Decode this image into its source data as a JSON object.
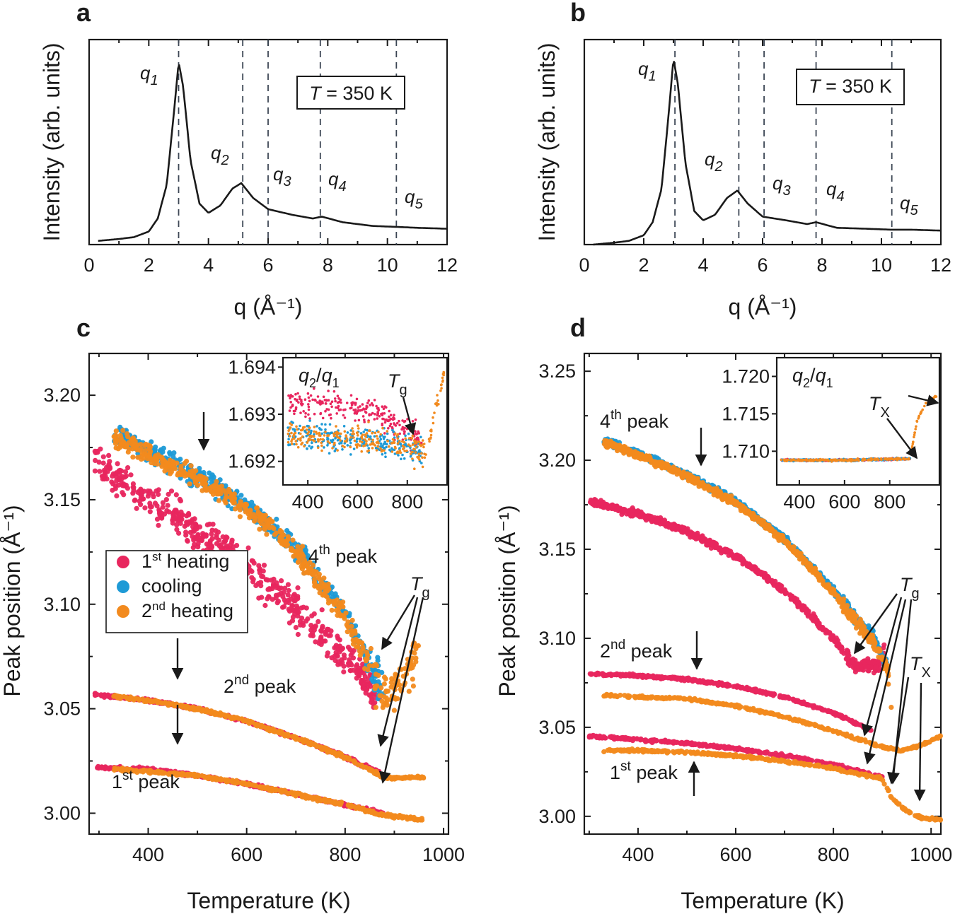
{
  "panels": {
    "a": {
      "letter": "a",
      "xlabel": "q (Å⁻¹)",
      "ylabel": "Intensity (arb. units)",
      "xlim": [
        0,
        12
      ],
      "xticks": [
        0,
        2,
        4,
        6,
        8,
        10,
        12
      ],
      "box_label": "T = 350 K",
      "peak_labels": [
        "q1",
        "q2",
        "q3",
        "q4",
        "q5"
      ]
    },
    "b": {
      "letter": "b",
      "xlabel": "q (Å⁻¹)",
      "ylabel": "Intensity (arb. units)",
      "xlim": [
        0,
        12
      ],
      "xticks": [
        0,
        2,
        4,
        6,
        8,
        10,
        12
      ],
      "box_label": "T = 350 K",
      "peak_labels": [
        "q1",
        "q2",
        "q3",
        "q4",
        "q5"
      ]
    },
    "c": {
      "letter": "c",
      "xlabel": "Temperature (K)",
      "ylabel": "Peak position (Å⁻¹)",
      "legend": [
        "1st heating",
        "cooling",
        "2nd heating"
      ],
      "peak_names": [
        "4th peak",
        "2nd peak",
        "1st peak"
      ],
      "tg_label": "Tg",
      "inset_label": "q2/q1"
    },
    "d": {
      "letter": "d",
      "xlabel": "Temperature (K)",
      "ylabel": "Peak position (Å⁻¹)",
      "peak_names": [
        "4th peak",
        "2nd peak",
        "1st peak"
      ],
      "tg_label": "Tg",
      "tx_label": "Tx",
      "inset_label": "q2/q1"
    }
  },
  "colors": {
    "first_heating": "#e8265e",
    "cooling": "#1e9ad6",
    "second_heating": "#f28a1e"
  },
  "chart_data": [
    {
      "type": "line",
      "panel": "a",
      "x": [
        0.3,
        1,
        1.5,
        2,
        2.3,
        2.6,
        2.85,
        3.0,
        3.15,
        3.4,
        3.7,
        4.0,
        4.4,
        4.8,
        5.1,
        5.5,
        6.0,
        6.8,
        7.5,
        7.8,
        8.5,
        9.5,
        10.3,
        11,
        12
      ],
      "values": [
        0.02,
        0.03,
        0.04,
        0.07,
        0.14,
        0.32,
        0.72,
        0.98,
        0.85,
        0.45,
        0.22,
        0.17,
        0.21,
        0.3,
        0.33,
        0.25,
        0.19,
        0.16,
        0.14,
        0.15,
        0.12,
        0.1,
        0.095,
        0.09,
        0.085
      ],
      "ylim": [
        0,
        1.1
      ],
      "dashed_lines_x": [
        3.0,
        5.15,
        6.0,
        7.75,
        10.3
      ],
      "xlabel": "q (Å⁻¹)",
      "ylabel": "Intensity (arb. units)",
      "annotations": [
        "q1",
        "q2",
        "q3",
        "q4",
        "q5",
        "T = 350 K"
      ]
    },
    {
      "type": "line",
      "panel": "b",
      "x": [
        0.3,
        1,
        1.5,
        2,
        2.3,
        2.6,
        2.85,
        3.0,
        3.15,
        3.4,
        3.7,
        4.0,
        4.4,
        4.8,
        5.15,
        5.5,
        6.0,
        6.8,
        7.5,
        7.8,
        8.5,
        9.5,
        10.3,
        11,
        12
      ],
      "values": [
        0.0,
        0.01,
        0.02,
        0.05,
        0.12,
        0.3,
        0.72,
        1.0,
        0.86,
        0.44,
        0.18,
        0.13,
        0.16,
        0.25,
        0.29,
        0.22,
        0.15,
        0.13,
        0.11,
        0.12,
        0.09,
        0.085,
        0.08,
        0.08,
        0.075
      ],
      "ylim": [
        0,
        1.1
      ],
      "dashed_lines_x": [
        3.05,
        5.2,
        6.05,
        7.8,
        10.35
      ],
      "xlabel": "q (Å⁻¹)",
      "ylabel": "Intensity (arb. units)",
      "annotations": [
        "q1",
        "q2",
        "q3",
        "q4",
        "q5",
        "T = 350 K"
      ]
    },
    {
      "type": "scatter",
      "panel": "c",
      "xlim": [
        280,
        1010
      ],
      "ylim": [
        2.99,
        3.22
      ],
      "xticks": [
        400,
        600,
        800,
        1000
      ],
      "yticks": [
        3.0,
        3.05,
        3.1,
        3.15,
        3.2
      ],
      "xlabel": "Temperature (K)",
      "ylabel": "Peak position (Å⁻¹)",
      "series": [
        {
          "name": "1st heating",
          "peak": "4th peak",
          "x": [
            290,
            400,
            500,
            600,
            700,
            800,
            870
          ],
          "values": [
            3.168,
            3.151,
            3.135,
            3.118,
            3.098,
            3.074,
            3.055
          ]
        },
        {
          "name": "cooling",
          "peak": "4th peak",
          "x": [
            330,
            400,
            500,
            600,
            700,
            800,
            880
          ],
          "values": [
            3.181,
            3.173,
            3.161,
            3.147,
            3.127,
            3.096,
            3.055
          ]
        },
        {
          "name": "2nd heating",
          "peak": "4th peak",
          "x": [
            330,
            400,
            500,
            600,
            700,
            800,
            880,
            920,
            950
          ],
          "values": [
            3.18,
            3.172,
            3.16,
            3.146,
            3.125,
            3.094,
            3.055,
            3.065,
            3.08
          ]
        },
        {
          "name": "1st heating",
          "peak": "2nd peak",
          "x": [
            290,
            400,
            500,
            600,
            700,
            800,
            880
          ],
          "values": [
            3.057,
            3.054,
            3.05,
            3.044,
            3.036,
            3.027,
            3.018
          ]
        },
        {
          "name": "2nd heating",
          "peak": "2nd peak",
          "x": [
            330,
            400,
            500,
            600,
            700,
            800,
            880,
            960
          ],
          "values": [
            3.056,
            3.054,
            3.05,
            3.044,
            3.036,
            3.027,
            3.017,
            3.017
          ]
        },
        {
          "name": "1st heating",
          "peak": "1st peak",
          "x": [
            290,
            400,
            500,
            600,
            700,
            800,
            880
          ],
          "values": [
            3.022,
            3.021,
            3.018,
            3.014,
            3.009,
            3.004,
            3.0
          ]
        },
        {
          "name": "2nd heating",
          "peak": "1st peak",
          "x": [
            330,
            400,
            500,
            600,
            700,
            800,
            880,
            960
          ],
          "values": [
            3.021,
            3.02,
            3.018,
            3.014,
            3.009,
            3.004,
            2.999,
            2.997
          ]
        }
      ],
      "inset": {
        "label": "q2/q1",
        "xlim": [
          300,
          960
        ],
        "ylim": [
          1.6915,
          1.6942
        ],
        "xticks": [
          400,
          600,
          800
        ],
        "yticks": [
          1.692,
          1.693,
          1.694
        ],
        "series": [
          {
            "name": "1st heating",
            "x": [
              320,
              500,
              700,
              860
            ],
            "values": [
              1.6933,
              1.6932,
              1.693,
              1.6924
            ]
          },
          {
            "name": "cooling",
            "x": [
              320,
              500,
              700,
              860
            ],
            "values": [
              1.6926,
              1.6925,
              1.6924,
              1.6922
            ]
          },
          {
            "name": "2nd heating",
            "x": [
              320,
              500,
              700,
              880,
              920,
              950
            ],
            "values": [
              1.6926,
              1.6925,
              1.6924,
              1.6922,
              1.6933,
              1.6939
            ]
          }
        ]
      }
    },
    {
      "type": "scatter",
      "panel": "d",
      "xlim": [
        290,
        1020
      ],
      "ylim": [
        2.99,
        3.26
      ],
      "xticks": [
        400,
        600,
        800,
        1000
      ],
      "yticks": [
        3.0,
        3.05,
        3.1,
        3.15,
        3.2,
        3.25
      ],
      "xlabel": "Temperature (K)",
      "ylabel": "Peak position (Å⁻¹)",
      "series": [
        {
          "name": "1st heating",
          "peak": "4th peak",
          "x": [
            300,
            400,
            500,
            600,
            700,
            800,
            850,
            890,
            905
          ],
          "values": [
            3.177,
            3.17,
            3.16,
            3.146,
            3.127,
            3.1,
            3.083,
            3.085,
            3.093
          ]
        },
        {
          "name": "cooling",
          "peak": "4th peak",
          "x": [
            330,
            400,
            500,
            600,
            700,
            800,
            880,
            910
          ],
          "values": [
            3.211,
            3.204,
            3.192,
            3.177,
            3.156,
            3.127,
            3.1,
            3.085
          ]
        },
        {
          "name": "2nd heating",
          "peak": "4th peak",
          "x": [
            330,
            400,
            500,
            600,
            700,
            800,
            880,
            910,
            920
          ],
          "values": [
            3.21,
            3.203,
            3.191,
            3.176,
            3.155,
            3.126,
            3.099,
            3.085,
            3.06
          ]
        },
        {
          "name": "1st heating",
          "peak": "2nd peak",
          "x": [
            300,
            400,
            500,
            600,
            700,
            800,
            880
          ],
          "values": [
            3.08,
            3.079,
            3.077,
            3.073,
            3.067,
            3.058,
            3.048
          ]
        },
        {
          "name": "2nd heating",
          "peak": "2nd peak",
          "x": [
            330,
            400,
            500,
            600,
            700,
            800,
            900,
            940,
            980,
            1020
          ],
          "values": [
            3.068,
            3.067,
            3.066,
            3.062,
            3.056,
            3.048,
            3.039,
            3.037,
            3.04,
            3.045
          ]
        },
        {
          "name": "1st heating",
          "peak": "1st peak",
          "x": [
            300,
            400,
            500,
            600,
            700,
            800,
            900
          ],
          "values": [
            3.045,
            3.043,
            3.041,
            3.038,
            3.034,
            3.029,
            3.022
          ]
        },
        {
          "name": "2nd heating",
          "peak": "1st peak",
          "x": [
            330,
            400,
            500,
            600,
            700,
            800,
            900,
            920,
            950,
            980,
            1020
          ],
          "values": [
            3.037,
            3.037,
            3.036,
            3.034,
            3.031,
            3.027,
            3.021,
            3.01,
            3.003,
            2.999,
            2.998
          ]
        }
      ],
      "inset": {
        "label": "q2/q1",
        "xlim": [
          300,
          1020
        ],
        "ylim": [
          1.7055,
          1.7225
        ],
        "xticks": [
          400,
          600,
          800
        ],
        "yticks": [
          1.71,
          1.715,
          1.72
        ],
        "series": [
          {
            "name": "1st heating",
            "x": [
              320,
              600,
              890
            ],
            "values": [
              1.7088,
              1.7088,
              1.709
            ]
          },
          {
            "name": "cooling",
            "x": [
              320,
              600,
              890
            ],
            "values": [
              1.7088,
              1.7088,
              1.709
            ]
          },
          {
            "name": "2nd heating",
            "x": [
              320,
              600,
              890,
              920,
              960,
              1010
            ],
            "values": [
              1.7088,
              1.7088,
              1.709,
              1.714,
              1.7165,
              1.7175
            ]
          }
        ]
      }
    }
  ]
}
